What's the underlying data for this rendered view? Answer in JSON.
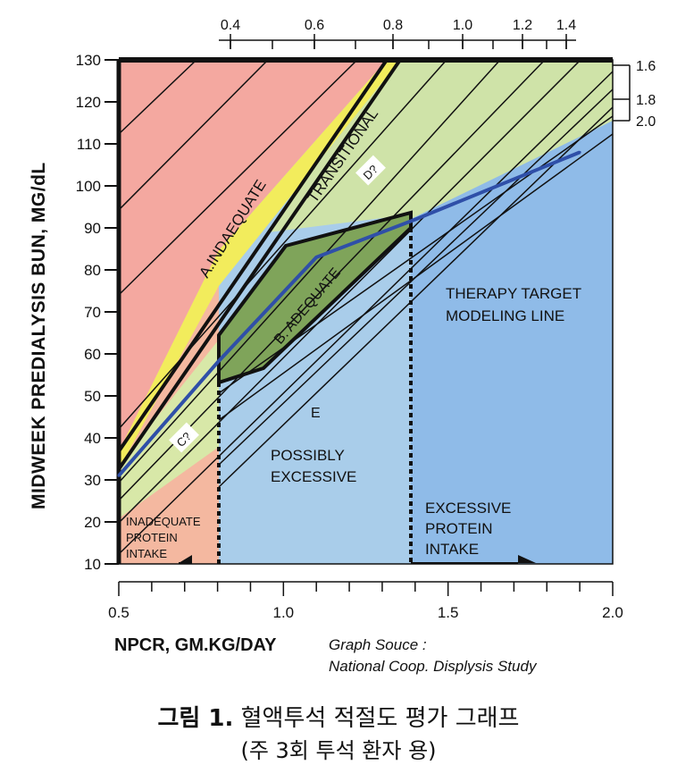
{
  "chart_data": {
    "type": "line",
    "xlabel": "NPCR, GM.KG/DAY",
    "ylabel": "MIDWEEK PREDIALYSIS BUN, MG/dL",
    "xlim": [
      0.5,
      2.0
    ],
    "ylim": [
      10,
      130
    ],
    "x_ticks": [
      "0.5",
      "1.0",
      "1.5",
      "2.0"
    ],
    "y_ticks": [
      "10",
      "20",
      "30",
      "40",
      "50",
      "60",
      "70",
      "80",
      "90",
      "100",
      "110",
      "120",
      "130"
    ],
    "top_axis_ticks": [
      "0.4",
      "0.6",
      "0.8",
      "1.0",
      "1.2",
      "1.4"
    ],
    "right_axis_ticks": [
      "1.6",
      "1.8",
      "2.0"
    ],
    "source_note": [
      "Graph Souce :",
      "National Coop. Displysis Study"
    ],
    "regions": [
      {
        "label": "A.INDAEQUATE",
        "color": "#f4a8a0"
      },
      {
        "label": "TRANSITIONAL",
        "color": "#f2ec5c"
      },
      {
        "label": "B. ADEQUATE",
        "color": "#7fa45a"
      },
      {
        "label": "D?",
        "color": "#cfe3a8"
      },
      {
        "label": "C?",
        "color": "#d8e8a8"
      },
      {
        "label": "E",
        "color": "#a9cdea"
      },
      {
        "label": "POSSIBLY EXCESSIVE",
        "color": "#a9cdea"
      },
      {
        "label": "INADEQUATE PROTEIN INTAKE",
        "color": "#f4b8a0"
      },
      {
        "label": "EXCESSIVE PROTEIN INTAKE",
        "color": "#8fbbe8"
      },
      {
        "label": "THERAPY TARGET MODELING LINE",
        "color": "#8fbbe8"
      }
    ],
    "series": [
      {
        "name": "THERAPY TARGET MODELING LINE",
        "color": "#2f4fa8",
        "x": [
          0.5,
          0.8,
          1.1,
          1.4,
          1.9
        ],
        "y": [
          31,
          58,
          83,
          92,
          108
        ]
      }
    ]
  },
  "caption": {
    "figure_label": "그림 1.",
    "title": "혈액투석 적절도 평가 그래프",
    "subtitle": "(주 3회 투석 환자 용)"
  }
}
